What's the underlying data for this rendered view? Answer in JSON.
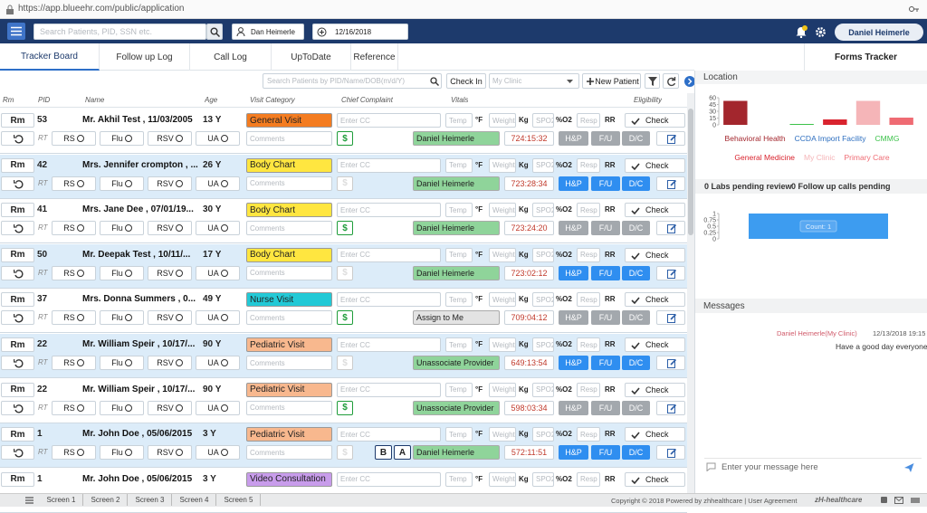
{
  "browser": {
    "url": "https://app.blueehr.com/public/application"
  },
  "header": {
    "search_placeholder": "Search Patients, PID, SSN etc.",
    "provider": "Dan Heimerle",
    "date": "12/16/2018",
    "user": "Daniel Heimerle"
  },
  "tabs": [
    "Tracker Board",
    "Follow up Log",
    "Call Log",
    "UpToDate",
    "Reference"
  ],
  "forms_tab": "Forms Tracker",
  "toolbar": {
    "search_placeholder": "Search Patients by PID/Name/DOB(m/d/Y)",
    "check_in": "Check In",
    "clinic": "My Clinic",
    "new_patient": "New Patient"
  },
  "columns": [
    "Rm",
    "PID",
    "Name",
    "Age",
    "Visit Category",
    "Chief Complaint",
    "Vitals",
    "Eligibility"
  ],
  "labels": {
    "rm": "Rm",
    "rt": "RT",
    "rs": "RS",
    "flu": "Flu",
    "rsv": "RSV",
    "ua": "UA",
    "comments": "Comments",
    "cc": "Enter CC",
    "temp": "Temp",
    "temp_unit": "°F",
    "weight": "Weight",
    "weight_unit": "Kg",
    "spo2": "SPO2",
    "spo2_unit": "%O2",
    "resp": "Resp",
    "resp_unit": "RR",
    "check": "Check",
    "hp": "H&P",
    "fu": "F/U",
    "dc": "D/C",
    "dollar": "$"
  },
  "rows": [
    {
      "pid": "53",
      "name": "Mr. Akhil Test , 11/03/2005",
      "age": "13 Y",
      "category": "General Visit",
      "category_color": "#f47c20",
      "provider": "Daniel Heimerle",
      "provider_color": "#8fd49a",
      "timer": "724:15:32"
    },
    {
      "pid": "42",
      "name": "Mrs. Jennifer crompton , ...",
      "age": "26 Y",
      "category": "Body Chart",
      "category_color": "#ffe640",
      "provider": "Daniel Heimerle",
      "provider_color": "#8fd49a",
      "timer": "723:28:34"
    },
    {
      "pid": "41",
      "name": "Mrs. Jane Dee , 07/01/19...",
      "age": "30 Y",
      "category": "Body Chart",
      "category_color": "#ffe640",
      "provider": "Daniel Heimerle",
      "provider_color": "#8fd49a",
      "timer": "723:24:20"
    },
    {
      "pid": "50",
      "name": "Mr. Deepak Test , 10/11/...",
      "age": "17 Y",
      "category": "Body Chart",
      "category_color": "#ffe640",
      "provider": "Daniel Heimerle",
      "provider_color": "#8fd49a",
      "timer": "723:02:12"
    },
    {
      "pid": "37",
      "name": "Mrs. Donna Summers , 0...",
      "age": "49 Y",
      "category": "Nurse Visit",
      "category_color": "#22c9d6",
      "provider": "Assign to Me",
      "provider_color": "#e3e3e3",
      "timer": "709:04:12"
    },
    {
      "pid": "22",
      "name": "Mr. William Speir , 10/17/...",
      "age": "90 Y",
      "category": "Pediatric Visit",
      "category_color": "#f8b88e",
      "provider": "Unassociate Provider",
      "provider_color": "#8fd49a",
      "timer": "649:13:54"
    },
    {
      "pid": "22",
      "name": "Mr. William Speir , 10/17/...",
      "age": "90 Y",
      "category": "Pediatric Visit",
      "category_color": "#f8b88e",
      "provider": "Unassociate Provider",
      "provider_color": "#8fd49a",
      "timer": "598:03:34"
    },
    {
      "pid": "1",
      "name": "Mr. John Doe , 05/06/2015",
      "age": "3 Y",
      "category": "Pediatric Visit",
      "category_color": "#f8b88e",
      "provider": "Daniel Heimerle",
      "provider_color": "#8fd49a",
      "timer": "572:11:51",
      "extra_buttons": [
        "B",
        "A"
      ]
    },
    {
      "pid": "1",
      "name": "Mr. John Doe , 05/06/2015",
      "age": "3 Y",
      "category": "Video Consultation",
      "category_color": "#c89ceb"
    }
  ],
  "location_chart": {
    "type": "bar",
    "title": "Location",
    "categories": [
      "Behavioral Health",
      "CCDA Import Facility",
      "CMMG",
      "General Medicine",
      "My Clinic",
      "Primary Care"
    ],
    "colors": [
      "#a3262d",
      "#2e6fc0",
      "#3cc24a",
      "#d9232e",
      "#f5b5b8",
      "#ef6b73"
    ],
    "values": [
      53,
      0,
      2,
      12,
      53,
      16
    ],
    "ylim": [
      0,
      60
    ],
    "yticks": [
      0,
      15,
      30,
      45,
      60
    ]
  },
  "pending": {
    "labs": "0 Labs pending review",
    "followups": "0 Follow up calls pending"
  },
  "status_chart": {
    "type": "bar",
    "values": [
      1
    ],
    "value_labels": [
      "Count: 1"
    ],
    "color": "#3d9cf0",
    "ylim": [
      0,
      1
    ],
    "yticks": [
      0,
      0.25,
      0.5,
      0.75,
      1
    ]
  },
  "messages": {
    "title": "Messages",
    "sender": "Daniel Heimerle(My Clinic)",
    "time": "12/13/2018 19:15",
    "text": "Have a good day everyone",
    "input_placeholder": "Enter your message here"
  },
  "footer": {
    "screens": [
      "Screen 1",
      "Screen 2",
      "Screen 3",
      "Screen 4",
      "Screen 5"
    ],
    "copyright": "Copyright © 2018 Powered by zhhealthcare | User Agreement",
    "logo": "zH-healthcare"
  }
}
